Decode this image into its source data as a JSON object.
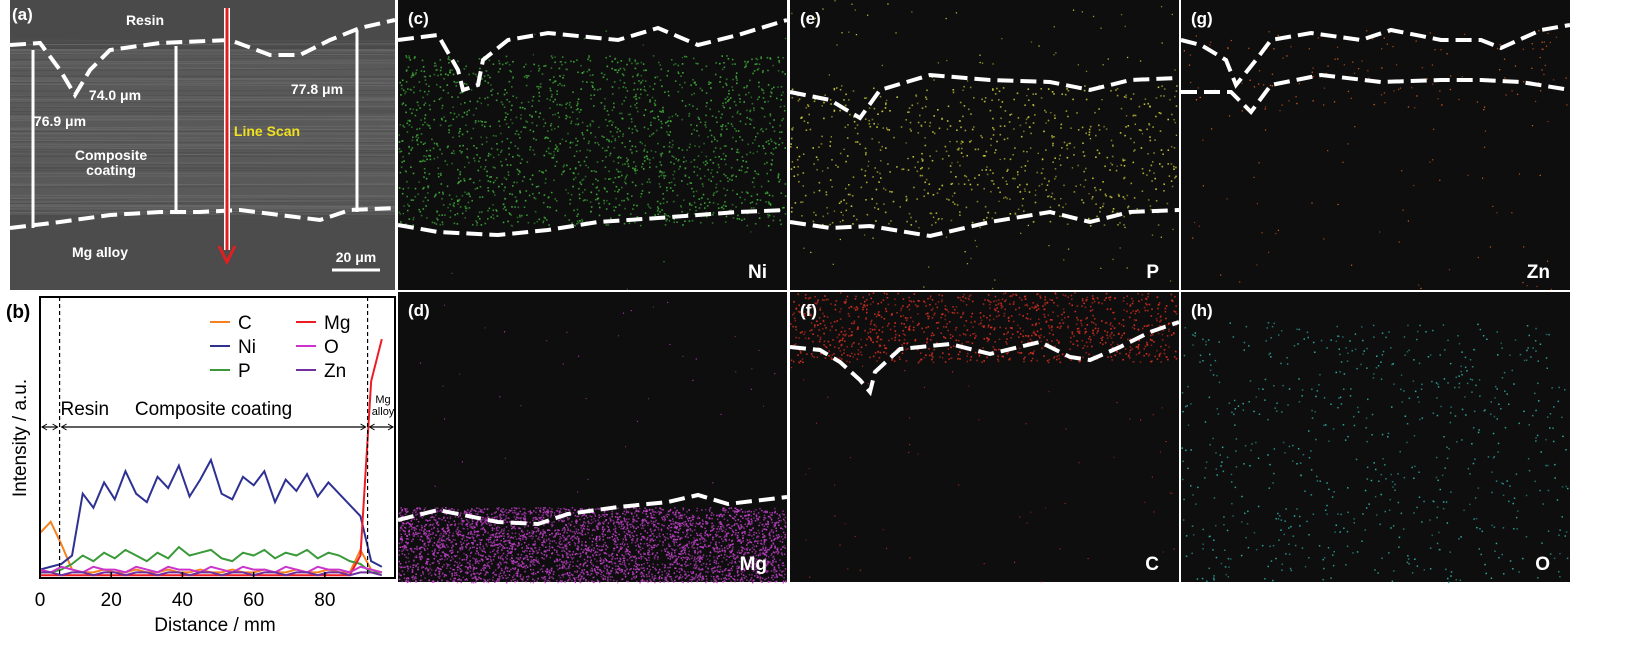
{
  "panel_a": {
    "label": "(a)",
    "resin": "Resin",
    "thickness_1": "76.9 μm",
    "thickness_2": "74.0 μm",
    "thickness_3": "77.8 μm",
    "line_scan": "Line Scan",
    "coating": "Composite coating",
    "substrate": "Mg alloy",
    "scale_bar": "20 μm"
  },
  "chart_data": {
    "type": "line",
    "panel_label": "(b)",
    "xlabel": "Distance / mm",
    "ylabel": "Intensity / a.u.",
    "x": [
      0,
      3,
      6,
      9,
      12,
      15,
      18,
      21,
      24,
      27,
      30,
      33,
      36,
      39,
      42,
      45,
      48,
      51,
      54,
      57,
      60,
      63,
      66,
      69,
      72,
      75,
      78,
      81,
      84,
      87,
      90,
      93,
      96
    ],
    "xlim": [
      0,
      99.7
    ],
    "xticks": [
      0,
      20,
      40,
      60,
      80
    ],
    "ylim": [
      0,
      100
    ],
    "boundaries": [
      5.5,
      92
    ],
    "region_labels": [
      "Resin",
      "Composite coating",
      "Mg alloy"
    ],
    "series": [
      {
        "name": "C",
        "color": "#f58220",
        "values": [
          16,
          20,
          12,
          3,
          2,
          2,
          3,
          2,
          2,
          3,
          2,
          2,
          3,
          2,
          2,
          3,
          2,
          2,
          3,
          2,
          2,
          3,
          2,
          2,
          3,
          2,
          2,
          3,
          2,
          2,
          10,
          3,
          2
        ]
      },
      {
        "name": "Ni",
        "color": "#2e3192",
        "values": [
          3,
          4,
          5,
          8,
          30,
          25,
          34,
          28,
          38,
          30,
          27,
          36,
          32,
          40,
          29,
          35,
          42,
          30,
          28,
          36,
          33,
          38,
          27,
          35,
          31,
          37,
          29,
          34,
          30,
          26,
          22,
          6,
          4
        ]
      },
      {
        "name": "P",
        "color": "#3a9a3a",
        "values": [
          2,
          2,
          3,
          5,
          8,
          6,
          9,
          7,
          10,
          8,
          6,
          9,
          7,
          11,
          8,
          9,
          10,
          7,
          6,
          9,
          8,
          10,
          7,
          9,
          8,
          10,
          7,
          9,
          8,
          6,
          5,
          2,
          2
        ]
      },
      {
        "name": "Mg",
        "color": "#ed1c24",
        "values": [
          1,
          1,
          1,
          1,
          1,
          1,
          1,
          1,
          1,
          1,
          1,
          1,
          1,
          1,
          1,
          1,
          1,
          1,
          1,
          1,
          1,
          1,
          1,
          1,
          1,
          1,
          1,
          1,
          1,
          1,
          8,
          70,
          85
        ]
      },
      {
        "name": "O",
        "color": "#cc33cc",
        "values": [
          3,
          2,
          4,
          3,
          2,
          4,
          3,
          3,
          2,
          4,
          3,
          2,
          4,
          3,
          3,
          2,
          4,
          3,
          2,
          4,
          3,
          3,
          2,
          4,
          3,
          2,
          4,
          3,
          3,
          2,
          4,
          3,
          2
        ]
      },
      {
        "name": "Zn",
        "color": "#7030a0",
        "values": [
          2,
          2,
          1,
          2,
          2,
          1,
          2,
          2,
          1,
          2,
          2,
          1,
          2,
          2,
          1,
          2,
          2,
          1,
          2,
          2,
          1,
          2,
          2,
          1,
          2,
          2,
          1,
          2,
          2,
          1,
          2,
          2,
          1
        ]
      }
    ]
  },
  "maps": [
    {
      "label": "(c)",
      "element": "Ni",
      "color": "#3fae3a"
    },
    {
      "label": "(e)",
      "element": "P",
      "color": "#c8c83a"
    },
    {
      "label": "(g)",
      "element": "Zn",
      "color": "#e0601e"
    },
    {
      "label": "(d)",
      "element": "Mg",
      "color": "#c040c8"
    },
    {
      "label": "(f)",
      "element": "C",
      "color": "#d83020"
    },
    {
      "label": "(h)",
      "element": "O",
      "color": "#2fb0a8"
    }
  ]
}
